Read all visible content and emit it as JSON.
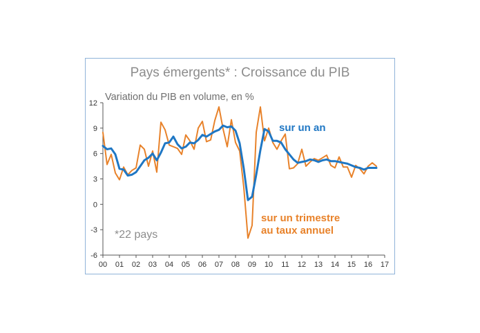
{
  "chart_data": {
    "type": "line",
    "title": "Pays émergents* : Croissance du PIB",
    "ylabel": "Variation du PIB en volume, en %",
    "xlabel": "",
    "x_tick_labels": [
      "00",
      "01",
      "02",
      "03",
      "04",
      "05",
      "06",
      "07",
      "08",
      "09",
      "10",
      "11",
      "12",
      "13",
      "14",
      "15",
      "16",
      "17"
    ],
    "y_ticks": [
      12,
      9,
      6,
      3,
      0,
      -3,
      -6
    ],
    "ylim": [
      -6,
      12
    ],
    "xlim": [
      2000,
      2017
    ],
    "grid": false,
    "note": "*22 pays",
    "series": [
      {
        "name": "sur un an",
        "color": "#1f77c4",
        "x": [
          2000.0,
          2000.25,
          2000.5,
          2000.75,
          2001.0,
          2001.25,
          2001.5,
          2001.75,
          2002.0,
          2002.25,
          2002.5,
          2002.75,
          2003.0,
          2003.25,
          2003.5,
          2003.75,
          2004.0,
          2004.25,
          2004.5,
          2004.75,
          2005.0,
          2005.25,
          2005.5,
          2005.75,
          2006.0,
          2006.25,
          2006.5,
          2006.75,
          2007.0,
          2007.25,
          2007.5,
          2007.75,
          2008.0,
          2008.25,
          2008.5,
          2008.75,
          2009.0,
          2009.25,
          2009.5,
          2009.75,
          2010.0,
          2010.25,
          2010.5,
          2010.75,
          2011.0,
          2011.25,
          2011.5,
          2011.75,
          2012.0,
          2012.25,
          2012.5,
          2012.75,
          2013.0,
          2013.25,
          2013.5,
          2013.75,
          2014.0,
          2014.25,
          2014.5,
          2014.75,
          2015.0,
          2015.25,
          2015.5,
          2015.75,
          2016.0,
          2016.25,
          2016.5
        ],
        "values": [
          6.9,
          6.5,
          6.6,
          5.9,
          4.2,
          4.1,
          3.4,
          3.5,
          3.8,
          4.5,
          5.2,
          5.5,
          6.0,
          5.2,
          6.1,
          7.2,
          7.3,
          8.0,
          7.1,
          6.6,
          6.8,
          7.3,
          7.2,
          7.6,
          8.2,
          8.0,
          8.3,
          8.6,
          8.8,
          9.3,
          9.1,
          9.2,
          8.7,
          7.2,
          4.2,
          0.5,
          0.9,
          3.5,
          6.4,
          8.9,
          8.6,
          7.5,
          7.5,
          7.3,
          6.5,
          5.9,
          5.3,
          4.9,
          5.0,
          5.1,
          5.3,
          5.2,
          5.0,
          5.2,
          5.3,
          5.1,
          5.1,
          5.0,
          4.9,
          4.8,
          4.6,
          4.4,
          4.3,
          4.1,
          4.3,
          4.3,
          4.3
        ]
      },
      {
        "name": "sur un trimestre au taux annuel",
        "color": "#e8822a",
        "x": [
          2000.0,
          2000.25,
          2000.5,
          2000.75,
          2001.0,
          2001.25,
          2001.5,
          2001.75,
          2002.0,
          2002.25,
          2002.5,
          2002.75,
          2003.0,
          2003.25,
          2003.5,
          2003.75,
          2004.0,
          2004.25,
          2004.5,
          2004.75,
          2005.0,
          2005.25,
          2005.5,
          2005.75,
          2006.0,
          2006.25,
          2006.5,
          2006.75,
          2007.0,
          2007.25,
          2007.5,
          2007.75,
          2008.0,
          2008.25,
          2008.5,
          2008.75,
          2009.0,
          2009.25,
          2009.5,
          2009.75,
          2010.0,
          2010.25,
          2010.5,
          2010.75,
          2011.0,
          2011.25,
          2011.5,
          2011.75,
          2012.0,
          2012.25,
          2012.5,
          2012.75,
          2013.0,
          2013.25,
          2013.5,
          2013.75,
          2014.0,
          2014.25,
          2014.5,
          2014.75,
          2015.0,
          2015.25,
          2015.5,
          2015.75,
          2016.0,
          2016.25,
          2016.5
        ],
        "values": [
          8.5,
          4.7,
          5.9,
          3.7,
          2.9,
          4.4,
          3.5,
          4.0,
          4.3,
          7.0,
          6.5,
          4.5,
          6.3,
          3.8,
          9.7,
          8.8,
          7.0,
          6.8,
          6.6,
          5.9,
          8.2,
          7.5,
          6.5,
          9.0,
          9.8,
          7.4,
          7.6,
          9.9,
          11.5,
          8.9,
          6.8,
          10.0,
          7.3,
          6.3,
          2.0,
          -4.0,
          -2.5,
          8.5,
          11.5,
          7.5,
          9.0,
          7.3,
          6.5,
          7.5,
          8.3,
          4.2,
          4.3,
          4.8,
          6.5,
          4.5,
          5.0,
          5.4,
          5.2,
          5.5,
          5.8,
          4.6,
          4.3,
          5.6,
          4.4,
          4.4,
          3.2,
          4.6,
          4.2,
          3.6,
          4.5,
          4.9,
          4.5
        ]
      }
    ]
  },
  "annotations": {
    "series_label_year": "sur un an",
    "series_label_quarter_line1": "sur un trimestre",
    "series_label_quarter_line2": "au taux annuel",
    "footnote": "*22 pays"
  }
}
